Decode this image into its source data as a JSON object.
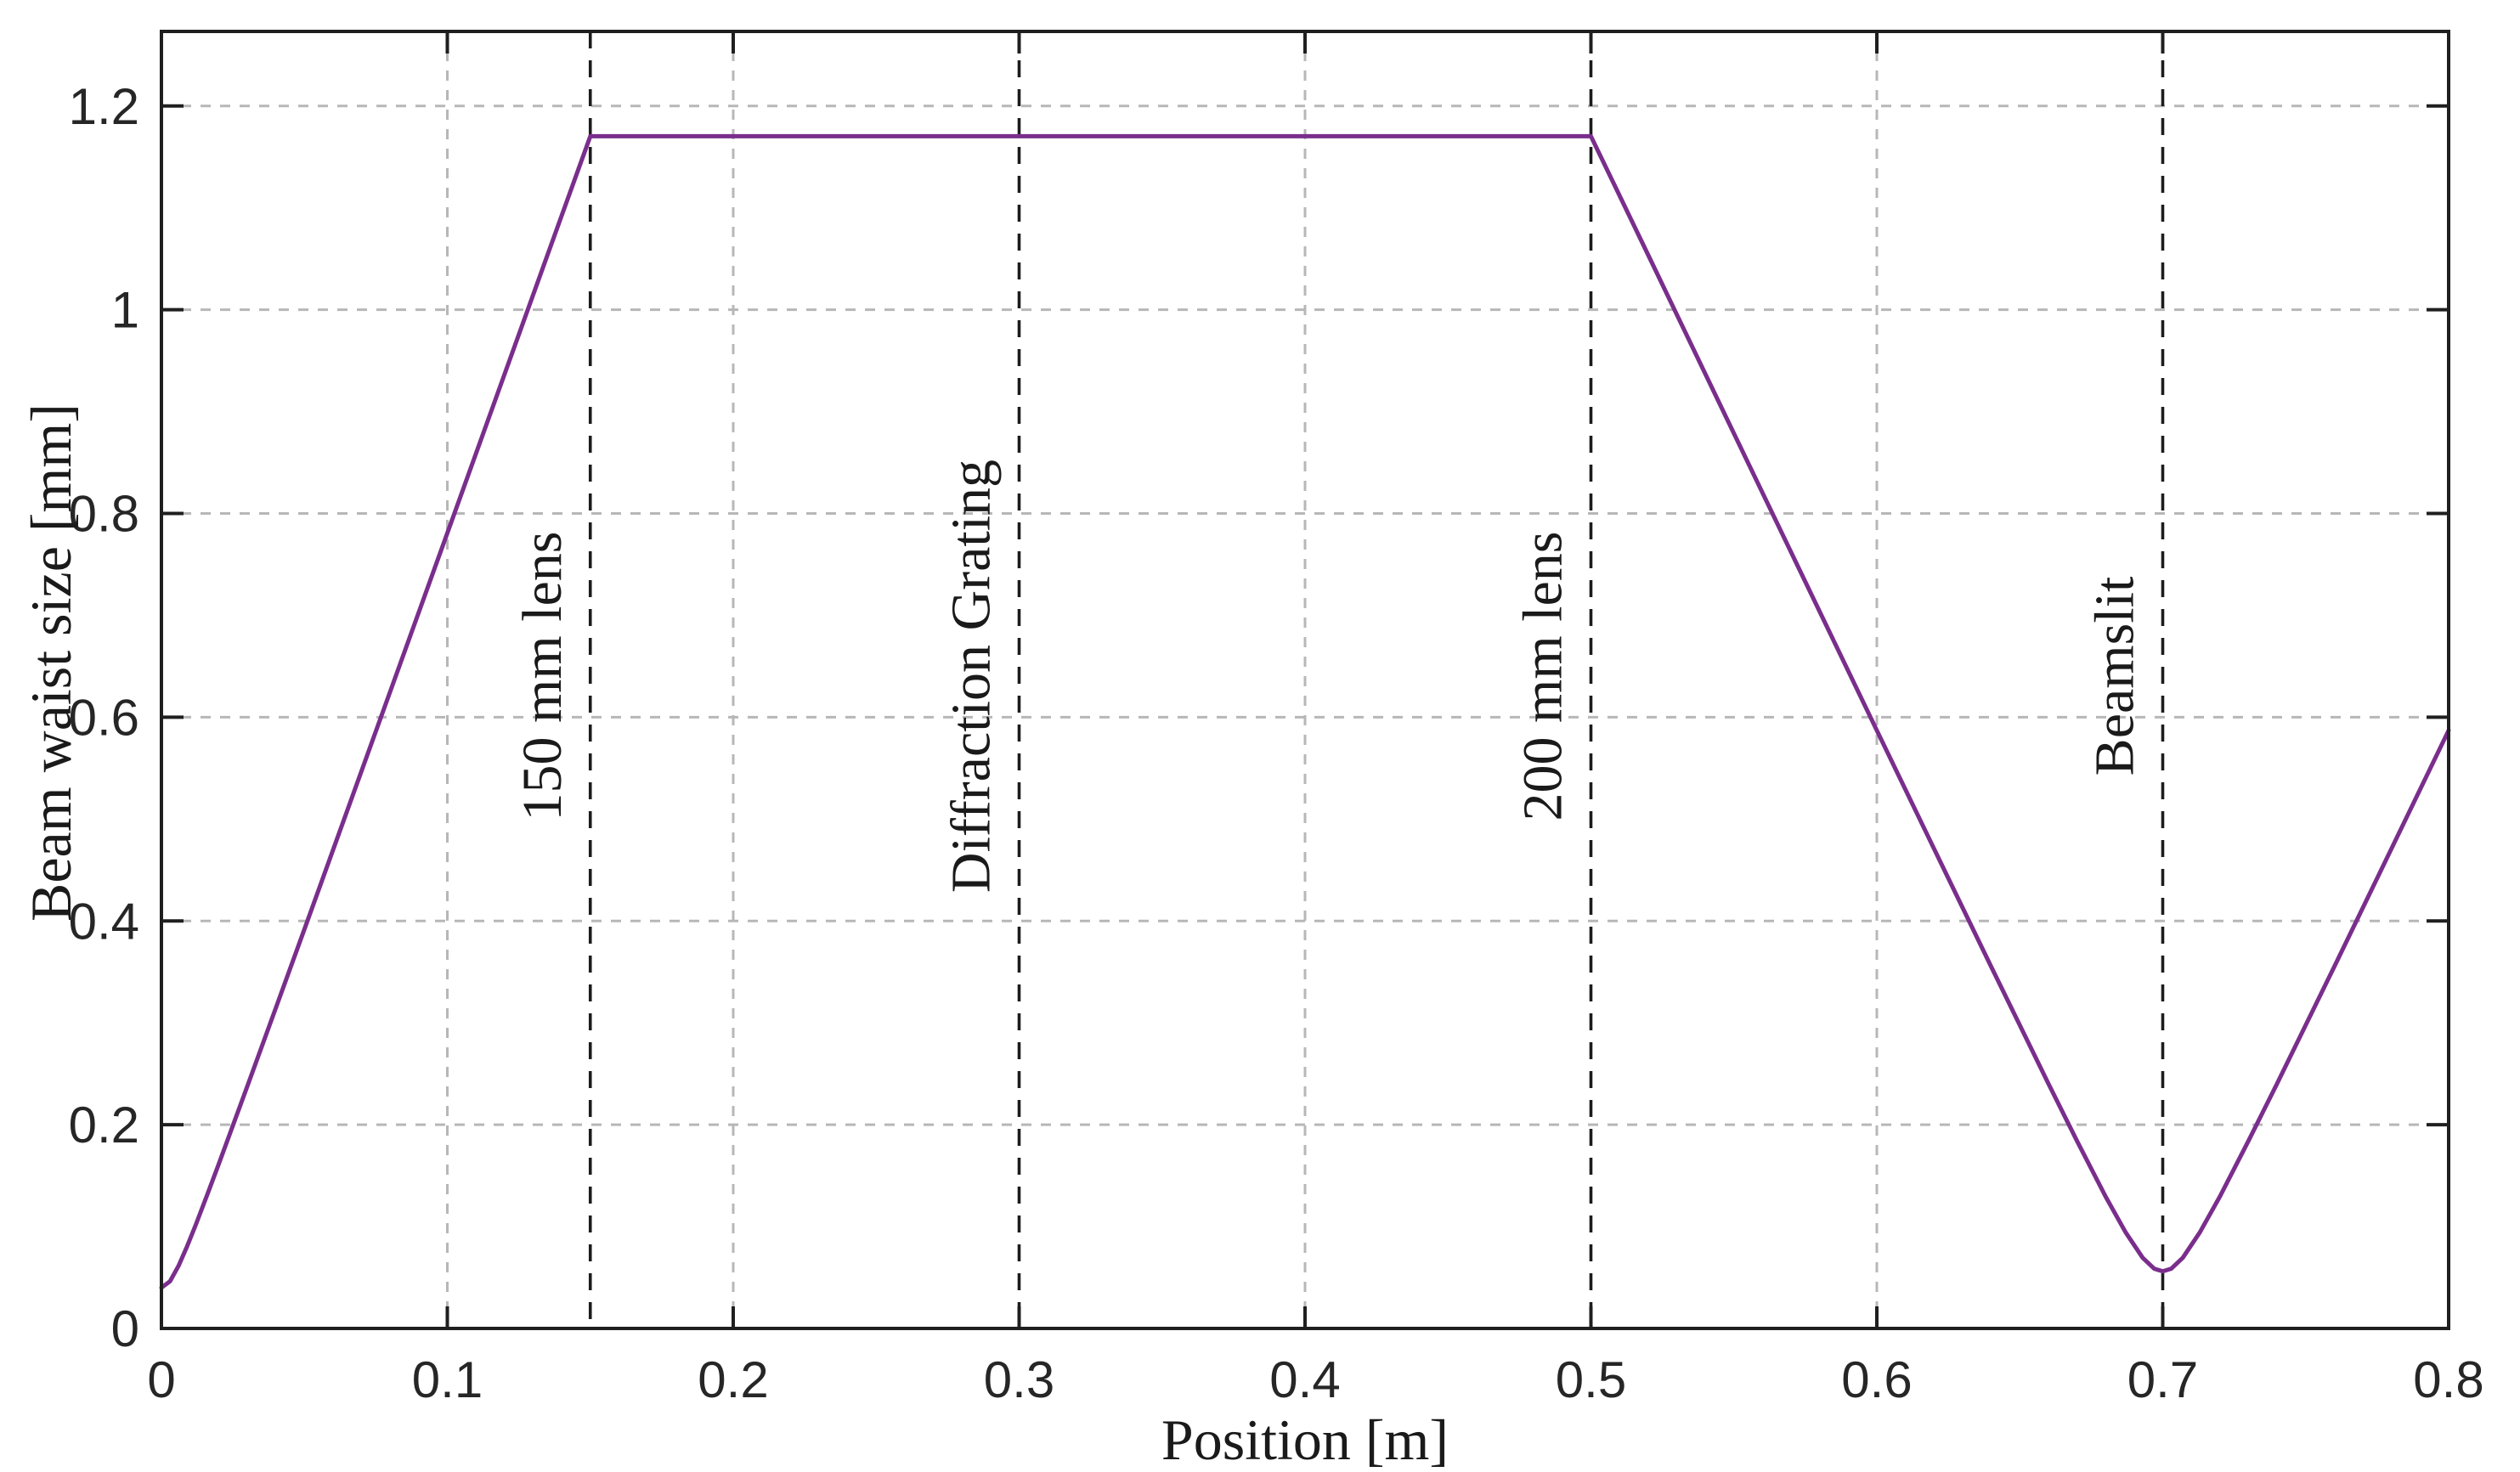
{
  "page": {
    "background": "#ffffff"
  },
  "chart_data": {
    "type": "line",
    "title": "",
    "xlabel": "Position [m]",
    "ylabel": "Beam waist size [mm]",
    "xlim": [
      0,
      0.8
    ],
    "ylim": [
      0,
      1.2732
    ],
    "grid": true,
    "legend": null,
    "x_ticks": [
      {
        "v": 0,
        "label": "0"
      },
      {
        "v": 0.1,
        "label": "0.1"
      },
      {
        "v": 0.2,
        "label": "0.2"
      },
      {
        "v": 0.3,
        "label": "0.3"
      },
      {
        "v": 0.4,
        "label": "0.4"
      },
      {
        "v": 0.5,
        "label": "0.5"
      },
      {
        "v": 0.6,
        "label": "0.6"
      },
      {
        "v": 0.7,
        "label": "0.7"
      },
      {
        "v": 0.8,
        "label": "0.8"
      }
    ],
    "y_ticks": [
      {
        "v": 0,
        "label": "0"
      },
      {
        "v": 0.2,
        "label": "0.2"
      },
      {
        "v": 0.4,
        "label": "0.4"
      },
      {
        "v": 0.6,
        "label": "0.6"
      },
      {
        "v": 0.8,
        "label": "0.8"
      },
      {
        "v": 1,
        "label": "1"
      },
      {
        "v": 1.2,
        "label": "1.2"
      }
    ],
    "x_gridlines": [
      0.1,
      0.2,
      0.4,
      0.6
    ],
    "y_gridlines": [
      0.2,
      0.4,
      0.6,
      0.8,
      1.0,
      1.2
    ],
    "series": [
      {
        "name": "beam-waist-size",
        "color": "#7A2E8C",
        "line_width": 5,
        "points": [
          [
            0,
            0.04
          ],
          [
            0.003,
            0.0463
          ],
          [
            0.006,
            0.0615
          ],
          [
            0.009,
            0.0808
          ],
          [
            0.012,
            0.1017
          ],
          [
            0.016,
            0.131
          ],
          [
            0.02,
            0.161
          ],
          [
            0.03,
            0.2373
          ],
          [
            0.04,
            0.3145
          ],
          [
            0.05,
            0.3919
          ],
          [
            0.06,
            0.4695
          ],
          [
            0.08,
            0.6251
          ],
          [
            0.1,
            0.7808
          ],
          [
            0.12,
            0.9366
          ],
          [
            0.14,
            1.0924
          ],
          [
            0.15,
            1.1703
          ],
          [
            0.2,
            1.1703
          ],
          [
            0.25,
            1.1703
          ],
          [
            0.3,
            1.1703
          ],
          [
            0.35,
            1.1703
          ],
          [
            0.4,
            1.1703
          ],
          [
            0.45,
            1.1703
          ],
          [
            0.5,
            1.1703
          ],
          [
            0.52,
            1.0539
          ],
          [
            0.55,
            0.8786
          ],
          [
            0.58,
            0.7037
          ],
          [
            0.6,
            0.5871
          ],
          [
            0.62,
            0.4709
          ],
          [
            0.64,
            0.3551
          ],
          [
            0.66,
            0.2404
          ],
          [
            0.67,
            0.1841
          ],
          [
            0.68,
            0.1296
          ],
          [
            0.687,
            0.0944
          ],
          [
            0.693,
            0.0694
          ],
          [
            0.697,
            0.0587
          ],
          [
            0.7,
            0.056
          ],
          [
            0.703,
            0.0587
          ],
          [
            0.707,
            0.0694
          ],
          [
            0.713,
            0.0944
          ],
          [
            0.72,
            0.1296
          ],
          [
            0.73,
            0.1841
          ],
          [
            0.74,
            0.2404
          ],
          [
            0.76,
            0.3551
          ],
          [
            0.78,
            0.4709
          ],
          [
            0.8,
            0.5871
          ]
        ]
      }
    ],
    "annotations": [
      {
        "x": 0.15,
        "label": "150 mm lens"
      },
      {
        "x": 0.3,
        "label": "Diffraction Grating"
      },
      {
        "x": 0.5,
        "label": "200 mm lens"
      },
      {
        "x": 0.7,
        "label": "Beamslit"
      }
    ],
    "styles": {
      "grid_color": "#b7b7b7",
      "grid_dash": "12 11",
      "annotation_color": "#1c1c1c",
      "annotation_dash": "20 14",
      "axis_color": "#1f1f1f",
      "tick_label_color": "#262626",
      "annotation_font_px": 66,
      "tick_font_px": 60
    }
  }
}
